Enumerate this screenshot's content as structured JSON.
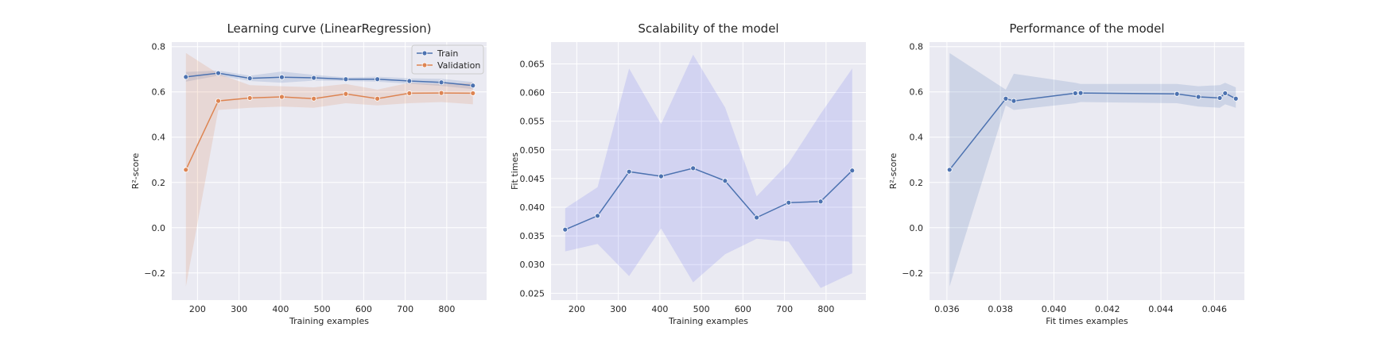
{
  "chart_data": [
    {
      "type": "line",
      "title": "Learning curve (LinearRegression)",
      "xlabel": "Training examples",
      "ylabel": "R²-score",
      "xlim": [
        138,
        896
      ],
      "ylim": [
        -0.32,
        0.82
      ],
      "xticks": [
        200,
        300,
        400,
        500,
        600,
        700,
        800
      ],
      "yticks": [
        -0.2,
        0.0,
        0.2,
        0.4,
        0.6,
        0.8
      ],
      "ytick_labels": [
        "−0.2",
        "0.0",
        "0.2",
        "0.4",
        "0.6",
        "0.8"
      ],
      "grid": true,
      "legend": "top-right",
      "x": [
        172,
        250,
        326,
        403,
        480,
        557,
        633,
        710,
        787,
        863
      ],
      "series": [
        {
          "name": "Train",
          "color": "#4c72b0",
          "values": [
            0.666,
            0.683,
            0.66,
            0.665,
            0.662,
            0.656,
            0.656,
            0.648,
            0.642,
            0.628
          ],
          "band_low": [
            0.645,
            0.672,
            0.648,
            0.64,
            0.65,
            0.648,
            0.645,
            0.636,
            0.626,
            0.612
          ],
          "band_high": [
            0.688,
            0.694,
            0.672,
            0.69,
            0.675,
            0.664,
            0.667,
            0.66,
            0.658,
            0.644
          ]
        },
        {
          "name": "Validation",
          "color": "#dd8452",
          "values": [
            0.256,
            0.56,
            0.573,
            0.578,
            0.57,
            0.591,
            0.57,
            0.594,
            0.595,
            0.594
          ],
          "band_low": [
            -0.26,
            0.52,
            0.53,
            0.535,
            0.53,
            0.55,
            0.54,
            0.55,
            0.555,
            0.545
          ],
          "band_high": [
            0.772,
            0.68,
            0.63,
            0.625,
            0.62,
            0.635,
            0.61,
            0.64,
            0.635,
            0.64
          ]
        }
      ]
    },
    {
      "type": "line",
      "title": "Scalability of the model",
      "xlabel": "Training examples",
      "ylabel": "Fit times",
      "xlim": [
        138,
        896
      ],
      "ylim": [
        0.0238,
        0.0688
      ],
      "xticks": [
        200,
        300,
        400,
        500,
        600,
        700,
        800
      ],
      "yticks": [
        0.025,
        0.03,
        0.035,
        0.04,
        0.045,
        0.05,
        0.055,
        0.06,
        0.065
      ],
      "ytick_labels": [
        "0.025",
        "0.030",
        "0.035",
        "0.040",
        "0.045",
        "0.050",
        "0.055",
        "0.060",
        "0.065"
      ],
      "grid": true,
      "x": [
        172,
        250,
        326,
        403,
        480,
        557,
        633,
        710,
        787,
        863
      ],
      "series": [
        {
          "color": "#4c72b0",
          "band_color": "#6a6ff0",
          "values": [
            0.0361,
            0.0385,
            0.0462,
            0.0454,
            0.0468,
            0.0446,
            0.0382,
            0.0408,
            0.041,
            0.0464
          ],
          "band_low": [
            0.0323,
            0.0336,
            0.028,
            0.0363,
            0.0269,
            0.0318,
            0.0345,
            0.034,
            0.0259,
            0.0285
          ],
          "band_high": [
            0.0398,
            0.0435,
            0.0642,
            0.0545,
            0.0666,
            0.0574,
            0.0419,
            0.0477,
            0.0563,
            0.0642
          ]
        }
      ]
    },
    {
      "type": "line",
      "title": "Performance of the model",
      "xlabel": "Fit times examples",
      "ylabel": "R²-score",
      "xlim": [
        0.03535,
        0.04712
      ],
      "ylim": [
        -0.32,
        0.82
      ],
      "xticks": [
        0.036,
        0.038,
        0.04,
        0.042,
        0.044,
        0.046
      ],
      "xtick_labels": [
        "0.036",
        "0.038",
        "0.040",
        "0.042",
        "0.044",
        "0.046"
      ],
      "yticks": [
        -0.2,
        0.0,
        0.2,
        0.4,
        0.6,
        0.8
      ],
      "ytick_labels": [
        "−0.2",
        "0.0",
        "0.2",
        "0.4",
        "0.6",
        "0.8"
      ],
      "grid": true,
      "x": [
        0.0361,
        0.0382,
        0.0385,
        0.0408,
        0.041,
        0.0446,
        0.0454,
        0.0462,
        0.0464,
        0.0468
      ],
      "series": [
        {
          "color": "#4c72b0",
          "values": [
            0.256,
            0.57,
            0.56,
            0.594,
            0.595,
            0.591,
            0.578,
            0.573,
            0.594,
            0.57
          ],
          "band_low": [
            -0.26,
            0.54,
            0.52,
            0.55,
            0.555,
            0.55,
            0.535,
            0.53,
            0.545,
            0.53
          ],
          "band_high": [
            0.772,
            0.61,
            0.68,
            0.64,
            0.635,
            0.635,
            0.625,
            0.63,
            0.64,
            0.62
          ]
        }
      ]
    }
  ]
}
